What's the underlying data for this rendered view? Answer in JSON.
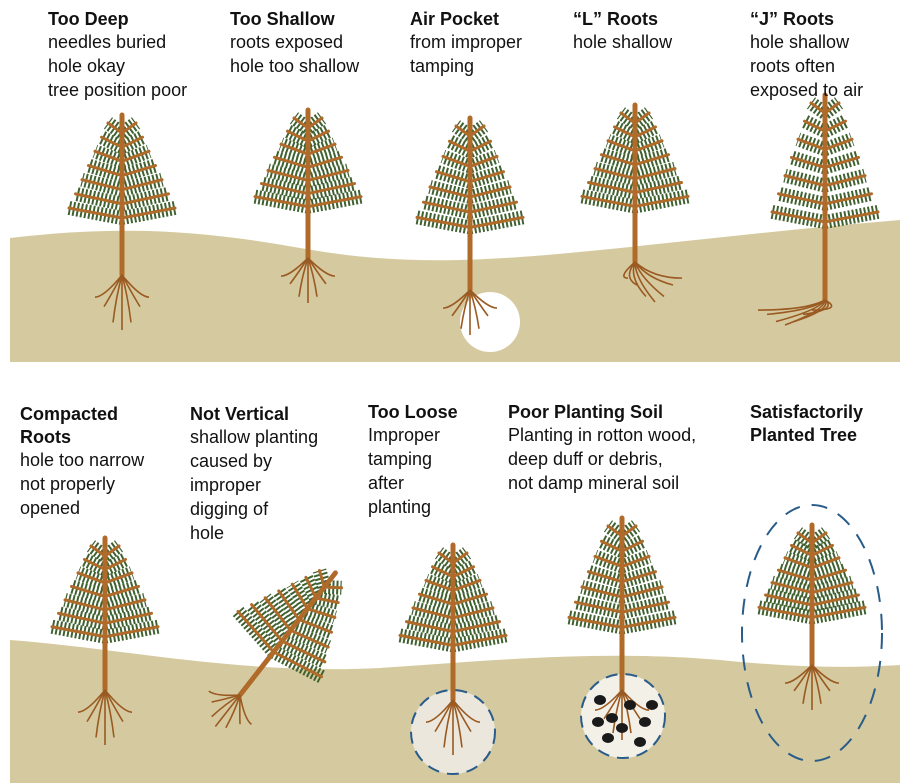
{
  "panels": [
    {
      "title": [
        "Too Deep"
      ],
      "lines": [
        "needles buried",
        "hole okay",
        "tree position poor"
      ]
    },
    {
      "title": [
        "Too Shallow"
      ],
      "lines": [
        "roots exposed",
        "hole too shallow"
      ]
    },
    {
      "title": [
        "Air Pocket"
      ],
      "lines": [
        "from improper",
        "tamping"
      ]
    },
    {
      "title": [
        "“L” Roots"
      ],
      "lines": [
        "hole shallow"
      ]
    },
    {
      "title": [
        "“J” Roots"
      ],
      "lines": [
        "hole shallow",
        "roots often",
        "exposed to air"
      ]
    },
    {
      "title": [
        "Compacted",
        "Roots"
      ],
      "lines": [
        "hole too narrow",
        "not properly",
        "opened"
      ]
    },
    {
      "title": [
        "Not Vertical"
      ],
      "lines": [
        "shallow planting",
        "caused by",
        "improper",
        "digging of",
        "hole"
      ]
    },
    {
      "title": [
        "Too Loose"
      ],
      "lines": [
        "Improper",
        "tamping",
        "after",
        "planting"
      ]
    },
    {
      "title": [
        "Poor Planting Soil"
      ],
      "lines": [
        "Planting in rotton wood,",
        "deep duff or debris,",
        "not damp mineral soil"
      ]
    },
    {
      "title": [
        "Satisfactorily",
        "Planted Tree"
      ],
      "lines": []
    }
  ]
}
